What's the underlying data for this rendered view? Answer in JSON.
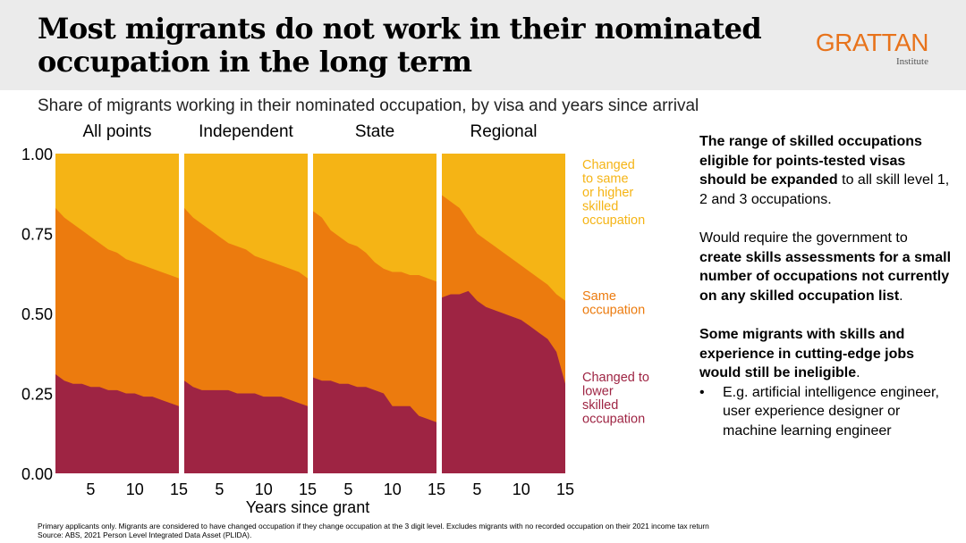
{
  "header": {
    "title_line1": "Most migrants do not work in their nominated",
    "title_line2": "occupation in the long term",
    "logo_name": "GRATTAN",
    "logo_sub": "Institute"
  },
  "subtitle": "Share of migrants working in their nominated occupation, by visa and years since arrival",
  "colors": {
    "changed_higher": "#f5b415",
    "same": "#ec7b0e",
    "changed_lower": "#9e2443",
    "background": "#ffffff",
    "header_bg": "#ebebeb",
    "brand": "#e8731b"
  },
  "chart_data": {
    "type": "area",
    "stacked": true,
    "xlabel": "Years since grant",
    "ylim": [
      0,
      1
    ],
    "yticks": [
      "1.00",
      "0.75",
      "0.50",
      "0.25",
      "0.00"
    ],
    "xticks": [
      "5",
      "10",
      "15"
    ],
    "x": [
      1,
      2,
      3,
      4,
      5,
      6,
      7,
      8,
      9,
      10,
      11,
      12,
      13,
      14,
      15
    ],
    "legend": [
      "Changed to same or higher skilled occupation",
      "Same occupation",
      "Changed to lower skilled occupation"
    ],
    "panels": [
      {
        "name": "All points",
        "lower": [
          0.31,
          0.29,
          0.28,
          0.28,
          0.27,
          0.27,
          0.26,
          0.26,
          0.25,
          0.25,
          0.24,
          0.24,
          0.23,
          0.22,
          0.21
        ],
        "lower_plus_same": [
          0.83,
          0.8,
          0.78,
          0.76,
          0.74,
          0.72,
          0.7,
          0.69,
          0.67,
          0.66,
          0.65,
          0.64,
          0.63,
          0.62,
          0.61
        ]
      },
      {
        "name": "Independent",
        "lower": [
          0.29,
          0.27,
          0.26,
          0.26,
          0.26,
          0.26,
          0.25,
          0.25,
          0.25,
          0.24,
          0.24,
          0.24,
          0.23,
          0.22,
          0.21
        ],
        "lower_plus_same": [
          0.83,
          0.8,
          0.78,
          0.76,
          0.74,
          0.72,
          0.71,
          0.7,
          0.68,
          0.67,
          0.66,
          0.65,
          0.64,
          0.63,
          0.61
        ]
      },
      {
        "name": "State",
        "lower": [
          0.3,
          0.29,
          0.29,
          0.28,
          0.28,
          0.27,
          0.27,
          0.26,
          0.25,
          0.21,
          0.21,
          0.21,
          0.18,
          0.17,
          0.16
        ],
        "lower_plus_same": [
          0.82,
          0.8,
          0.76,
          0.74,
          0.72,
          0.71,
          0.69,
          0.66,
          0.64,
          0.63,
          0.63,
          0.62,
          0.62,
          0.61,
          0.6
        ]
      },
      {
        "name": "Regional",
        "lower": [
          0.55,
          0.56,
          0.56,
          0.57,
          0.54,
          0.52,
          0.51,
          0.5,
          0.49,
          0.48,
          0.46,
          0.44,
          0.42,
          0.38,
          0.28
        ],
        "lower_plus_same": [
          0.87,
          0.85,
          0.83,
          0.79,
          0.75,
          0.73,
          0.71,
          0.69,
          0.67,
          0.65,
          0.63,
          0.61,
          0.59,
          0.56,
          0.54
        ]
      }
    ],
    "labels": {
      "changed_higher": [
        "Changed",
        "to same",
        "or higher",
        "skilled",
        "occupation"
      ],
      "same": [
        "Same",
        "occupation"
      ],
      "changed_lower": [
        "Changed to",
        "lower",
        "skilled",
        "occupation"
      ]
    }
  },
  "side": {
    "p1_b1": "The range of skilled occupations eligible for points-tested visas should be expanded",
    "p1_t1": " to all skill level 1, 2 and 3 occupations.",
    "p2_t1": "Would require the government to ",
    "p2_b1": "create skills assessments for a small number of occupations not currently on any skilled occupation list",
    "p2_t2": ".",
    "p3_b1": "Some migrants with skills and experience in cutting-edge jobs would still be ineligible",
    "p3_t1": ".",
    "bullet": "E.g. artificial intelligence engineer, user experience designer or machine learning engineer"
  },
  "footnote": {
    "line1": "Primary applicants only. Migrants are considered to have changed occupation if they change occupation at the 3 digit level. Excludes migrants with no recorded occupation on their 2021 income tax return",
    "line2": "Source: ABS, 2021 Person Level Integrated Data Asset (PLIDA)."
  }
}
